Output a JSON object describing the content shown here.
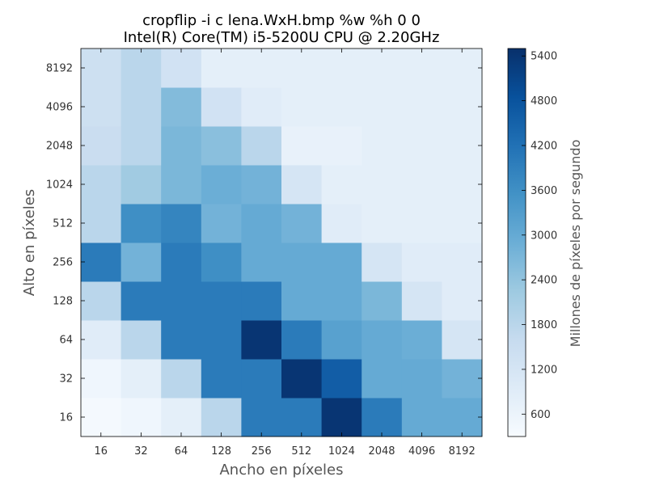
{
  "chart_data": {
    "type": "heatmap",
    "title": "cropflip -i c lena.WxH.bmp %w %h 0 0",
    "subtitle": "Intel(R) Core(TM) i5-5200U CPU @ 2.20GHz",
    "xlabel": "Ancho en píxeles",
    "ylabel": "Alto en píxeles",
    "x_categories": [
      "16",
      "32",
      "64",
      "128",
      "256",
      "512",
      "1024",
      "2048",
      "4096",
      "8192"
    ],
    "y_categories": [
      "16",
      "32",
      "64",
      "128",
      "256",
      "512",
      "1024",
      "2048",
      "4096",
      "8192"
    ],
    "colorbar": {
      "label": "Millones de píxeles por segundo",
      "range": [
        300,
        5500
      ],
      "ticks": [
        "600",
        "1200",
        "1800",
        "2400",
        "3000",
        "3600",
        "4200",
        "4800",
        "5400"
      ],
      "colormap": "Blues"
    },
    "values": [
      [
        380,
        500,
        800,
        1800,
        4000,
        4000,
        5400,
        4000,
        3000,
        3000
      ],
      [
        500,
        800,
        1800,
        4000,
        4000,
        5400,
        4600,
        3000,
        3000,
        2800
      ],
      [
        900,
        1800,
        4000,
        4000,
        5400,
        4000,
        3200,
        3000,
        2900,
        1200
      ],
      [
        1800,
        4000,
        4000,
        4000,
        4000,
        3000,
        3000,
        2700,
        1200,
        900
      ],
      [
        4000,
        2800,
        4000,
        3600,
        3000,
        3000,
        3000,
        1200,
        900,
        900
      ],
      [
        1800,
        3600,
        3800,
        2800,
        3000,
        2800,
        900,
        800,
        800,
        800
      ],
      [
        1800,
        2200,
        2700,
        2900,
        2800,
        1200,
        800,
        800,
        800,
        800
      ],
      [
        1500,
        1800,
        2700,
        2500,
        1800,
        700,
        700,
        800,
        800,
        800
      ],
      [
        1400,
        1800,
        2600,
        1300,
        900,
        800,
        800,
        800,
        800,
        800
      ],
      [
        1400,
        1800,
        1300,
        800,
        800,
        800,
        800,
        800,
        800,
        800
      ]
    ],
    "grid": false
  }
}
